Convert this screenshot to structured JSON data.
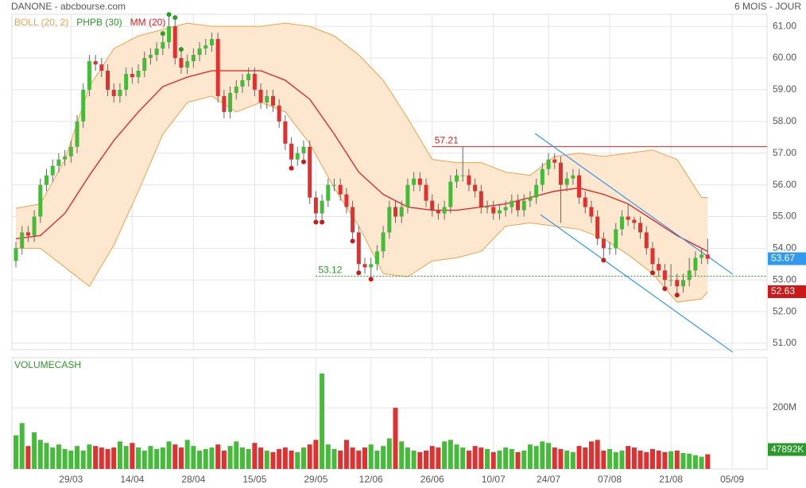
{
  "chart_data": {
    "type": "candlestick",
    "source": "DANONE - abcbourse.com",
    "period": "6 MOIS - JOUR",
    "legend": [
      {
        "name": "BOLL (20, 2)",
        "color": "#eea34a"
      },
      {
        "name": "PHPB (30)",
        "color": "#2a9a2a"
      },
      {
        "name": "MM (20)",
        "color": "#e02020"
      }
    ],
    "up_color": "#45bb3a",
    "down_color": "#e03030",
    "grid": true,
    "xlim": [
      -0.65,
      122.7
    ],
    "xticks": [
      {
        "value": 9,
        "label": "29/03"
      },
      {
        "value": 19,
        "label": "14/04"
      },
      {
        "value": 29,
        "label": "28/04"
      },
      {
        "value": 39,
        "label": "15/05"
      },
      {
        "value": 49,
        "label": "29/05"
      },
      {
        "value": 58,
        "label": "12/06"
      },
      {
        "value": 68,
        "label": "26/06"
      },
      {
        "value": 78,
        "label": "10/07"
      },
      {
        "value": 87,
        "label": "24/07"
      },
      {
        "value": 97,
        "label": "07/08"
      },
      {
        "value": 107,
        "label": "21/08"
      },
      {
        "value": 117,
        "label": "05/09"
      }
    ],
    "ylim": [
      50.8,
      61.38
    ],
    "yticks": [
      {
        "value": 51,
        "label": "51.00"
      },
      {
        "value": 52,
        "label": "52.00"
      },
      {
        "value": 53,
        "label": "53.00"
      },
      {
        "value": 54,
        "label": "54.00"
      },
      {
        "value": 55,
        "label": "55.00"
      },
      {
        "value": 56,
        "label": "56.00"
      },
      {
        "value": 57,
        "label": "57.00"
      },
      {
        "value": 58,
        "label": "58.00"
      },
      {
        "value": 59,
        "label": "59.00"
      },
      {
        "value": 60,
        "label": "60.00"
      },
      {
        "value": 61,
        "label": "61.00"
      }
    ],
    "open": [
      53.6,
      54.0,
      54.5,
      54.4,
      55.0,
      56.0,
      56.3,
      56.6,
      56.8,
      56.9,
      57.2,
      58.0,
      59.0,
      59.9,
      59.8,
      59.6,
      59.0,
      58.8,
      59.0,
      59.5,
      59.4,
      59.6,
      60.0,
      60.1,
      60.3,
      60.5,
      61.0,
      60.0,
      59.7,
      59.9,
      60.1,
      60.3,
      60.4,
      60.6,
      58.8,
      58.3,
      58.9,
      59.1,
      59.3,
      59.5,
      59.0,
      58.6,
      58.8,
      58.5,
      58.0,
      57.3,
      56.8,
      57.0,
      57.2,
      55.6,
      55.1,
      55.5,
      56.0,
      56.0,
      55.7,
      55.3,
      54.5,
      53.5,
      53.4,
      53.5,
      53.9,
      54.5,
      55.3,
      55.0,
      55.3,
      56.0,
      56.2,
      56.0,
      55.5,
      55.2,
      55.1,
      55.3,
      56.1,
      56.3,
      56.3,
      56.0,
      55.8,
      55.3,
      55.3,
      55.1,
      55.2,
      55.3,
      55.5,
      55.2,
      55.5,
      55.6,
      56.0,
      56.5,
      56.8,
      56.7,
      56.0,
      56.2,
      56.3,
      55.6,
      55.3,
      55.0,
      54.3,
      54.0,
      54.0,
      54.6,
      55.0,
      54.9,
      54.8,
      54.5,
      54.0,
      53.5,
      53.3,
      53.0,
      53.0,
      52.8,
      53.0,
      53.3,
      53.7,
      53.8
    ],
    "high": [
      54.2,
      54.7,
      54.7,
      55.2,
      56.2,
      56.5,
      56.8,
      57.0,
      57.1,
      57.4,
      58.2,
      59.2,
      60.1,
      60.1,
      60.0,
      59.8,
      59.2,
      59.2,
      59.7,
      59.7,
      59.8,
      60.2,
      60.3,
      60.5,
      60.7,
      61.3,
      61.2,
      60.2,
      60.1,
      60.3,
      60.5,
      60.6,
      60.8,
      60.8,
      59.0,
      59.1,
      59.3,
      59.5,
      59.7,
      59.7,
      59.2,
      59.0,
      59.0,
      58.7,
      58.2,
      57.5,
      57.2,
      57.4,
      57.4,
      55.8,
      55.7,
      56.2,
      56.2,
      56.2,
      55.9,
      55.5,
      54.7,
      53.7,
      53.7,
      54.1,
      54.7,
      55.5,
      55.5,
      55.5,
      56.2,
      56.4,
      56.4,
      56.2,
      55.7,
      55.4,
      55.5,
      56.3,
      56.5,
      57.21,
      56.5,
      56.2,
      56.0,
      55.5,
      55.5,
      55.4,
      55.5,
      55.7,
      55.7,
      55.7,
      55.8,
      56.2,
      56.7,
      57.0,
      57.0,
      56.9,
      56.4,
      56.5,
      56.5,
      55.8,
      55.5,
      55.2,
      54.5,
      54.2,
      54.8,
      55.2,
      55.4,
      55.0,
      55.0,
      54.7,
      54.2,
      53.7,
      53.5,
      53.5,
      53.2,
      53.2,
      53.7,
      53.9,
      54.0,
      54.3
    ],
    "low": [
      53.4,
      53.8,
      54.2,
      54.2,
      54.8,
      55.8,
      56.1,
      56.4,
      56.6,
      56.7,
      57.0,
      57.8,
      58.8,
      59.6,
      59.4,
      58.8,
      58.6,
      58.6,
      58.8,
      59.2,
      59.2,
      59.4,
      59.8,
      59.9,
      60.1,
      60.3,
      59.8,
      59.5,
      59.5,
      59.7,
      59.9,
      60.1,
      60.2,
      58.6,
      58.1,
      58.1,
      58.7,
      58.9,
      59.1,
      58.8,
      58.4,
      58.4,
      58.3,
      57.8,
      57.1,
      56.6,
      56.6,
      56.8,
      55.4,
      54.9,
      54.9,
      55.3,
      55.8,
      55.5,
      55.1,
      54.3,
      53.3,
      53.2,
      53.1,
      53.3,
      53.7,
      54.3,
      54.8,
      54.8,
      55.1,
      55.8,
      55.8,
      55.3,
      55.0,
      54.9,
      54.9,
      55.1,
      55.9,
      56.1,
      55.8,
      55.6,
      55.1,
      55.1,
      54.9,
      54.9,
      55.0,
      55.1,
      55.0,
      55.0,
      55.3,
      55.4,
      55.8,
      56.3,
      56.5,
      54.8,
      55.8,
      56.0,
      55.4,
      55.1,
      54.8,
      54.1,
      53.7,
      53.8,
      53.8,
      54.4,
      54.7,
      54.6,
      54.3,
      53.8,
      53.3,
      53.1,
      52.8,
      52.8,
      52.6,
      52.6,
      52.8,
      53.1,
      53.5,
      53.5
    ],
    "close": [
      54.0,
      54.5,
      54.4,
      55.0,
      56.0,
      56.3,
      56.6,
      56.8,
      56.9,
      57.2,
      58.0,
      59.0,
      59.9,
      59.8,
      59.6,
      59.0,
      58.8,
      59.0,
      59.5,
      59.4,
      59.6,
      60.0,
      60.1,
      60.3,
      60.5,
      61.0,
      60.0,
      59.7,
      59.9,
      60.1,
      60.3,
      60.4,
      60.6,
      58.8,
      58.3,
      58.9,
      59.1,
      59.3,
      59.5,
      59.0,
      58.6,
      58.8,
      58.5,
      58.0,
      57.3,
      56.8,
      57.0,
      57.2,
      55.6,
      55.1,
      55.5,
      56.0,
      56.0,
      55.7,
      55.3,
      54.5,
      53.5,
      53.4,
      53.5,
      53.9,
      54.5,
      55.3,
      55.0,
      55.3,
      56.0,
      56.2,
      56.0,
      55.5,
      55.2,
      55.1,
      55.3,
      56.1,
      56.3,
      56.3,
      56.0,
      55.8,
      55.3,
      55.3,
      55.1,
      55.2,
      55.3,
      55.5,
      55.2,
      55.5,
      55.6,
      56.0,
      56.5,
      56.8,
      56.7,
      56.0,
      56.2,
      56.3,
      55.6,
      55.3,
      55.0,
      54.3,
      54.0,
      54.0,
      54.6,
      55.0,
      54.9,
      54.8,
      54.5,
      54.0,
      53.5,
      53.3,
      53.0,
      53.0,
      52.8,
      53.0,
      53.3,
      53.7,
      53.8,
      53.67
    ],
    "bollinger": {
      "x": [
        0,
        4,
        8,
        12,
        16,
        20,
        24,
        28,
        32,
        36,
        40,
        44,
        48,
        52,
        56,
        60,
        64,
        68,
        72,
        76,
        80,
        84,
        88,
        92,
        96,
        100,
        104,
        108,
        112,
        113
      ],
      "upper": [
        55.26,
        55.4,
        56.8,
        59.1,
        60.3,
        60.7,
        60.9,
        61.1,
        61.0,
        61.0,
        61.0,
        61.1,
        61.0,
        60.7,
        60.1,
        59.3,
        58.1,
        56.8,
        56.7,
        56.7,
        56.4,
        56.3,
        56.9,
        57.0,
        56.9,
        57.0,
        57.1,
        56.8,
        55.6,
        55.6
      ],
      "lower": [
        54.0,
        54.0,
        53.4,
        52.8,
        54.1,
        55.8,
        57.6,
        58.6,
        58.8,
        58.3,
        58.6,
        58.3,
        57.3,
        55.9,
        54.7,
        53.2,
        53.1,
        53.6,
        53.7,
        53.9,
        54.7,
        54.8,
        54.7,
        54.6,
        54.3,
        53.8,
        53.2,
        52.3,
        52.4,
        52.63
      ],
      "color": "#eea34a",
      "fill": "#fde7cf"
    },
    "mm": {
      "x": [
        0,
        4,
        8,
        12,
        16,
        20,
        24,
        28,
        32,
        36,
        40,
        44,
        48,
        52,
        56,
        60,
        64,
        68,
        72,
        76,
        80,
        84,
        88,
        92,
        96,
        100,
        104,
        108,
        112,
        113
      ],
      "values": [
        54.3,
        54.4,
        55.1,
        56.3,
        57.4,
        58.3,
        59.1,
        59.4,
        59.6,
        59.6,
        59.6,
        59.3,
        58.7,
        57.6,
        56.4,
        55.7,
        55.3,
        55.2,
        55.2,
        55.3,
        55.4,
        55.6,
        55.8,
        55.9,
        55.7,
        55.4,
        54.9,
        54.4,
        54.0,
        53.9
      ],
      "color": "#e02020"
    },
    "phpb": {
      "highs": [
        24,
        25,
        26,
        27
      ],
      "lows": [
        45,
        47,
        49,
        50,
        55,
        56,
        58,
        96,
        104,
        106,
        108
      ]
    },
    "levels": [
      {
        "value": 57.21,
        "from": 68,
        "color": "#e02020"
      },
      {
        "value": 53.12,
        "from": 49,
        "color": "#2a9a2a"
      }
    ],
    "trendlines": {
      "color": "#3399ee",
      "lines": [
        {
          "x": [
            84.8,
            117.1
          ],
          "y": [
            57.62,
            53.18
          ]
        },
        {
          "x": [
            85.7,
            117.1
          ],
          "y": [
            55.06,
            50.72
          ]
        }
      ]
    },
    "volume": {
      "title": "VOLUMECASH",
      "ylim": [
        0,
        364
      ],
      "yticks": [
        {
          "value": 200,
          "label": "200M"
        }
      ],
      "values": [
        110,
        150,
        75,
        120,
        95,
        85,
        70,
        80,
        65,
        60,
        75,
        60,
        80,
        75,
        70,
        65,
        70,
        90,
        75,
        85,
        70,
        60,
        75,
        65,
        70,
        90,
        80,
        70,
        95,
        75,
        60,
        65,
        70,
        80,
        60,
        75,
        90,
        70,
        65,
        85,
        70,
        60,
        55,
        65,
        70,
        60,
        55,
        70,
        80,
        95,
        312,
        80,
        65,
        60,
        95,
        70,
        60,
        70,
        80,
        60,
        75,
        100,
        200,
        90,
        70,
        60,
        55,
        60,
        75,
        70,
        90,
        95,
        80,
        70,
        60,
        75,
        70,
        65,
        55,
        60,
        70,
        65,
        55,
        60,
        80,
        75,
        90,
        85,
        70,
        65,
        60,
        55,
        75,
        70,
        90,
        95,
        60,
        65,
        55,
        60,
        75,
        70,
        60,
        55,
        65,
        60,
        55,
        58,
        60,
        52,
        50,
        45,
        40,
        47.892
      ],
      "last_label": "47892K"
    }
  }
}
